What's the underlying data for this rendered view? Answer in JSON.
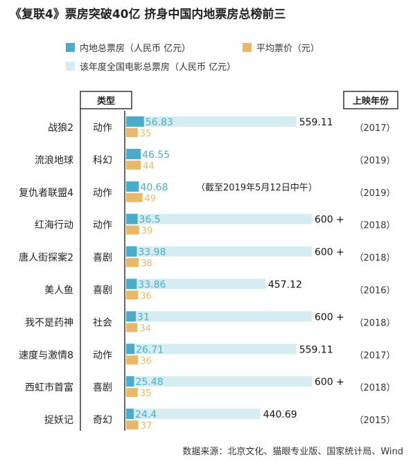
{
  "chart_data": {
    "type": "bar",
    "title": "《复联4》票房突破40亿 挤身中国内地票房总榜前三",
    "legend": [
      {
        "key": "box",
        "label": "内地总票房（人民币 亿元）",
        "color": "#4aacc9"
      },
      {
        "key": "price",
        "label": "平均票价（元）",
        "color": "#e8b86a"
      },
      {
        "key": "total",
        "label": "该年度全国电影总票房（人民币 亿元）",
        "color": "#d5ecf2"
      }
    ],
    "legend_position": "top",
    "header_type": "类型",
    "header_year": "上映年份",
    "grid": false,
    "rows": [
      {
        "name": "战狼2",
        "genre": "动作",
        "box": 56.83,
        "price": 35,
        "total": 559.11,
        "total_label": "559.11",
        "year": "（2017）"
      },
      {
        "name": "流浪地球",
        "genre": "科幻",
        "box": 46.55,
        "price": 44,
        "total": null,
        "total_label": "",
        "year": "（2019）"
      },
      {
        "name": "复仇者联盟4",
        "genre": "动作",
        "box": 40.68,
        "price": 49,
        "total": null,
        "total_label": "",
        "note": "（截至2019年5月12日中午）",
        "year": "（2019）"
      },
      {
        "name": "红海行动",
        "genre": "动作",
        "box": 36.5,
        "price": 39,
        "total": 609.76,
        "total_label": "600 +",
        "year": "（2018）"
      },
      {
        "name": "唐人街探案2",
        "genre": "喜剧",
        "box": 33.98,
        "price": 38,
        "total": 609.76,
        "total_label": "600 +",
        "year": "（2018）"
      },
      {
        "name": "美人鱼",
        "genre": "喜剧",
        "box": 33.86,
        "price": 36,
        "total": 457.12,
        "total_label": "457.12",
        "year": "（2016）"
      },
      {
        "name": "我不是药神",
        "genre": "社会",
        "box": 31,
        "price": 34,
        "total": 609.76,
        "total_label": "600 +",
        "year": "（2018）"
      },
      {
        "name": "速度与激情8",
        "genre": "动作",
        "box": 26.71,
        "price": 36,
        "total": 559.11,
        "total_label": "559.11",
        "year": "（2017）"
      },
      {
        "name": "西虹市首富",
        "genre": "喜剧",
        "box": 25.48,
        "price": 35,
        "total": 609.76,
        "total_label": "600 +",
        "year": "（2018）"
      },
      {
        "name": "捉妖记",
        "genre": "奇幻",
        "box": 24.4,
        "price": 37,
        "total": 440.69,
        "total_label": "440.69",
        "year": "（2015）"
      }
    ],
    "source": "数据来源：北京文化、猫眼专业版、国家统计局、Wind"
  }
}
